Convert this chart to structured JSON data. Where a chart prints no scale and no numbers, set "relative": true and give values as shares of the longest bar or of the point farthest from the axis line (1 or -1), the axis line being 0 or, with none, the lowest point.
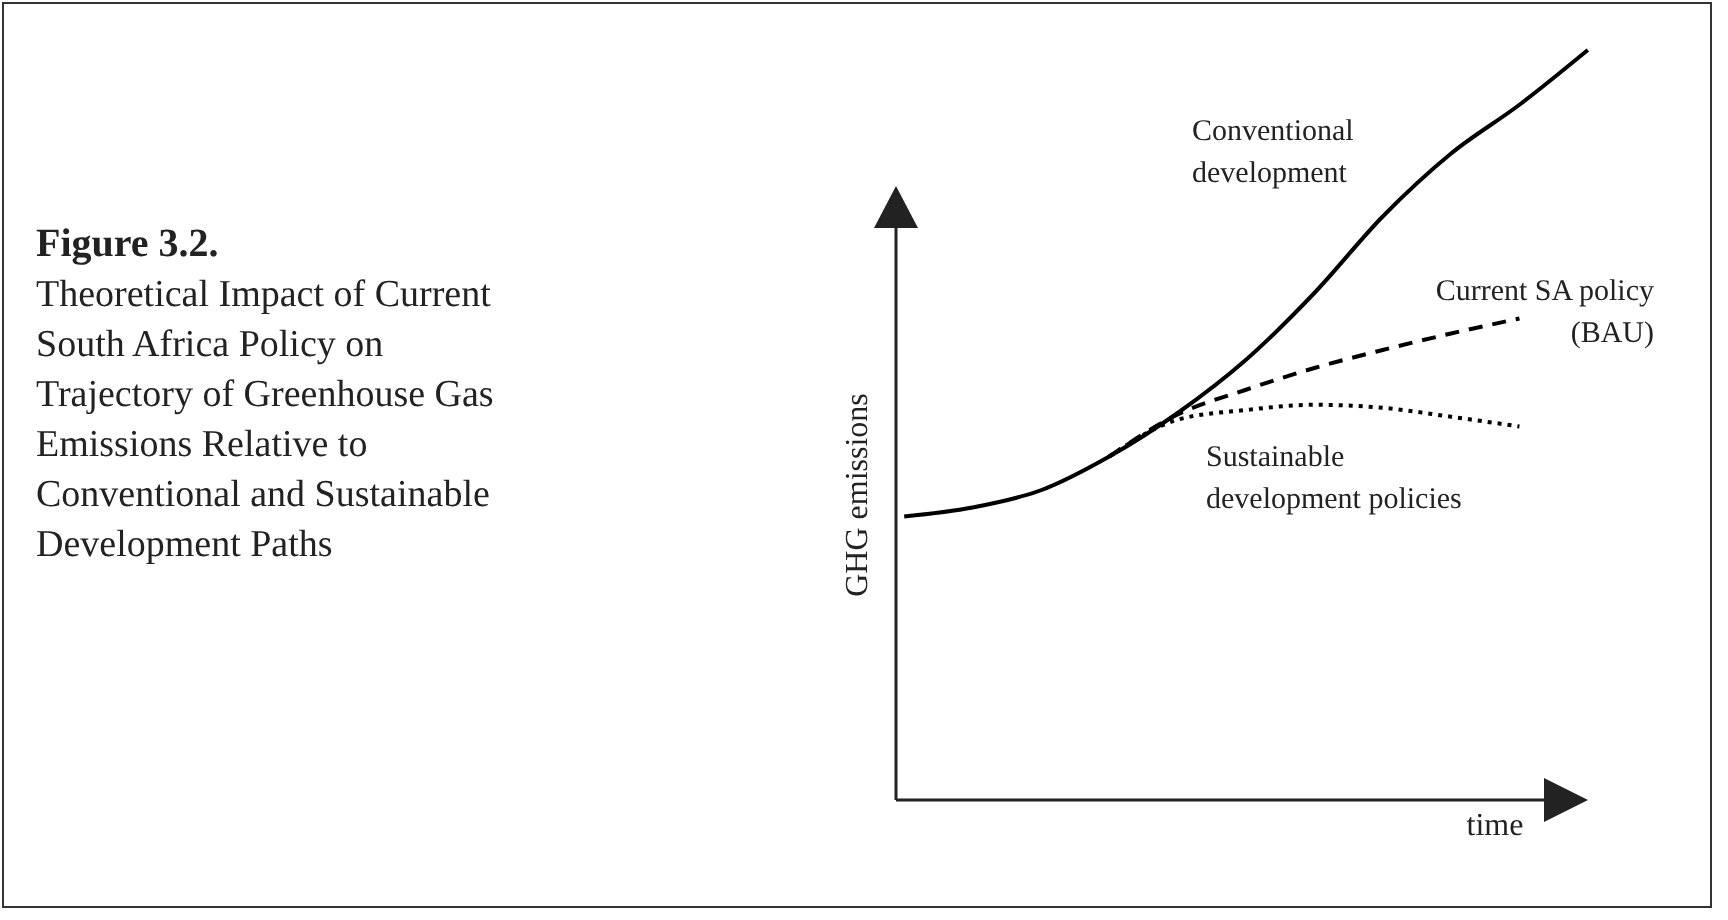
{
  "chart_data": {
    "type": "line",
    "title": "Figure 3.2.",
    "subtitle": "Theoretical Impact of Current South Africa Policy on Trajectory of Greenhouse Gas Emissions Relative to Conventional and Sustainable Development Paths",
    "xlabel": "time",
    "ylabel": "GHG emissions",
    "relative": true,
    "tick_labels": false,
    "categories": [
      null,
      null,
      null,
      null,
      null,
      null,
      null,
      null,
      null,
      null,
      null
    ],
    "series": [
      {
        "name": "Conventional development",
        "color": "#000000",
        "line_style": "solid",
        "values": [
          0.378,
          0.39,
          0.413,
          0.458,
          0.516,
          0.587,
          0.676,
          0.778,
          0.862,
          0.927,
          1
        ]
      },
      {
        "name": "Current SA policy (BAU)",
        "color": "#000000",
        "line_style": "dashed",
        "values": [
          null,
          null,
          null,
          0.458,
          0.514,
          0.547,
          0.576,
          0.6,
          0.622,
          0.642,
          null
        ]
      },
      {
        "name": "Sustainable development policies",
        "color": "#000000",
        "line_style": "dotted",
        "values": [
          null,
          null,
          null,
          0.458,
          0.507,
          0.52,
          0.527,
          0.523,
          0.511,
          0.498,
          null
        ]
      }
    ]
  }
}
